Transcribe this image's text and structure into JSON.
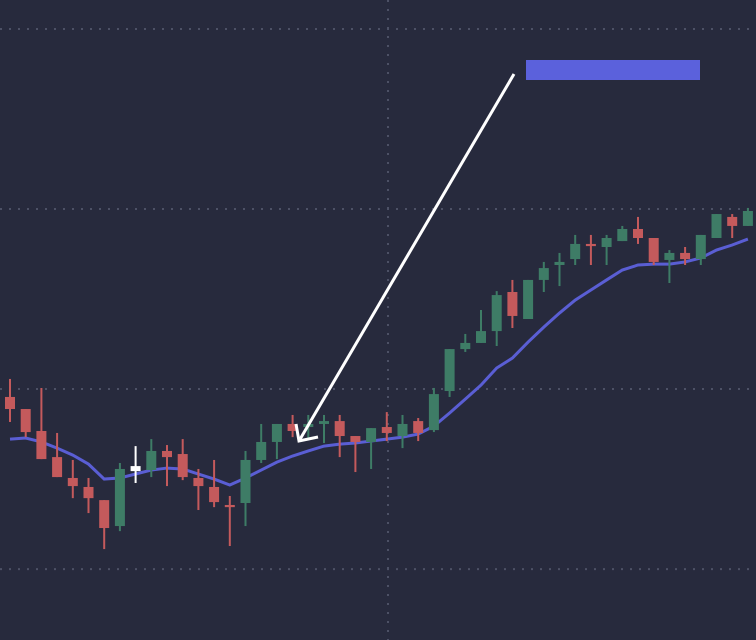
{
  "chart_data": {
    "type": "candlestick",
    "categories": [
      null,
      null,
      null,
      null,
      null,
      null,
      null,
      null,
      null,
      null,
      null,
      null,
      null,
      null,
      null,
      null,
      null,
      null,
      null,
      null,
      null,
      null,
      null,
      null,
      null,
      null,
      null,
      null,
      null,
      null,
      null,
      null,
      null,
      null,
      null,
      null,
      null,
      null,
      null,
      null,
      null,
      null,
      null,
      null,
      null,
      null,
      null,
      null
    ],
    "open": [
      9.56,
      8.89,
      7.67,
      6.22,
      5.06,
      4.56,
      3.83,
      2.39,
      5.44,
      5.5,
      6.56,
      6.39,
      5.06,
      4.56,
      3.56,
      3.67,
      6.06,
      7.06,
      8.06,
      7.89,
      8.06,
      8.22,
      7.39,
      7.06,
      7.89,
      7.39,
      8.22,
      7.72,
      9.89,
      12.22,
      12.56,
      13.22,
      15.39,
      13.89,
      16.06,
      16.89,
      17.22,
      18.06,
      17.89,
      18.22,
      18.89,
      18.39,
      17.17,
      17.56,
      17.22,
      18.39,
      19.56,
      19.06
    ],
    "high": [
      10.56,
      8.89,
      10.06,
      7.56,
      6.06,
      5.06,
      3.83,
      5.89,
      6.83,
      7.22,
      6.89,
      7.22,
      5.56,
      6.06,
      4.06,
      6.56,
      8.06,
      8.06,
      8.56,
      8.56,
      8.56,
      8.56,
      7.39,
      7.83,
      8.72,
      8.56,
      8.39,
      10.06,
      12.22,
      13.06,
      14.39,
      15.44,
      16.06,
      16.06,
      17.06,
      17.56,
      18.56,
      18.56,
      18.56,
      19.06,
      19.56,
      18.39,
      17.72,
      17.89,
      18.56,
      19.72,
      19.72,
      20.06
    ],
    "low": [
      8.17,
      7.33,
      6.11,
      5.11,
      3.94,
      3.11,
      1.11,
      2.11,
      4.78,
      5.11,
      4.61,
      4.94,
      3.28,
      3.44,
      1.28,
      2.39,
      5.89,
      6.11,
      7.33,
      7.17,
      7.0,
      6.22,
      5.39,
      5.56,
      7.11,
      6.72,
      7.11,
      7.61,
      9.56,
      12.06,
      12.56,
      12.39,
      13.39,
      13.89,
      15.39,
      15.72,
      16.89,
      16.89,
      16.89,
      18.22,
      18.06,
      16.89,
      15.89,
      16.89,
      16.89,
      18.39,
      18.39,
      19.06
    ],
    "close": [
      8.89,
      7.61,
      6.11,
      5.11,
      4.61,
      3.94,
      2.28,
      5.56,
      5.72,
      6.56,
      6.22,
      5.11,
      4.61,
      3.72,
      3.44,
      6.06,
      7.06,
      8.06,
      7.67,
      8.06,
      8.22,
      7.39,
      7.06,
      7.83,
      7.56,
      8.06,
      7.56,
      9.72,
      12.22,
      12.56,
      13.22,
      15.22,
      14.06,
      16.06,
      16.72,
      17.06,
      18.06,
      17.94,
      18.39,
      18.89,
      18.39,
      17.06,
      17.56,
      17.22,
      18.56,
      19.72,
      19.06,
      19.89
    ],
    "up_color": "#3e7c66",
    "down_color": "#c45a5c",
    "highlight_index": 8,
    "highlight_color": "#ffffff",
    "overlay": {
      "color": "#5a5ed4",
      "values": [
        7.22,
        7.28,
        7.06,
        6.72,
        6.33,
        5.83,
        5.0,
        5.06,
        5.28,
        5.5,
        5.61,
        5.56,
        5.28,
        5.0,
        4.67,
        5.06,
        5.5,
        5.94,
        6.28,
        6.56,
        6.83,
        6.94,
        7.0,
        7.11,
        7.22,
        7.33,
        7.5,
        7.94,
        8.67,
        9.44,
        10.22,
        11.17,
        11.72,
        12.61,
        13.44,
        14.22,
        14.94,
        15.5,
        16.06,
        16.61,
        16.89,
        16.94,
        16.94,
        17.06,
        17.28,
        17.72,
        18.0,
        18.33
      ]
    },
    "ylim": [
      -3.94,
      31.61
    ],
    "yticks": [
      0,
      10,
      20,
      30
    ],
    "grid": true
  }
}
